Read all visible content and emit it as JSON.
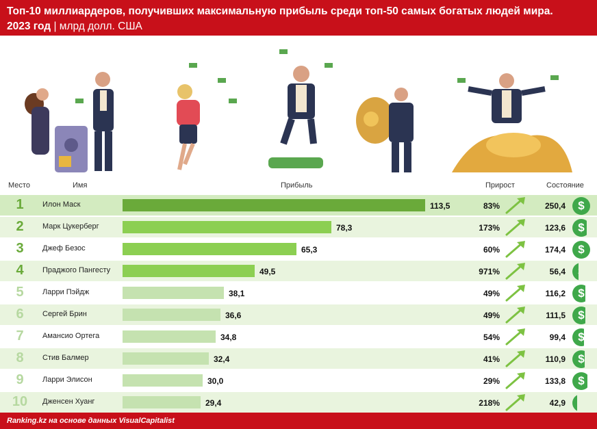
{
  "header": {
    "title_line1": "Топ-10 миллиардеров, получивших максимальную прибыль среди топ-50 самых богатых людей мира.",
    "title_year": "2023 год",
    "title_unit": " | млрд долл. США"
  },
  "columns": {
    "rank": "Место",
    "name": "Имя",
    "profit": "Прибыль",
    "growth": "Прирост",
    "worth": "Состояние"
  },
  "footer": {
    "source": "Ranking.kz на основе данных VisualCapitalist"
  },
  "coin_symbol": "$",
  "colors": {
    "header_red": "#c8101a",
    "bar_dark": "#6aaa3a",
    "bar_mid": "#8ccf52",
    "bar_light": "#c5e2b0",
    "arrow_green": "#7dc242",
    "coin_green": "#3fa84a",
    "rank_dark": "#6aaa3a",
    "rank_light": "#b6d8a0"
  },
  "chart_data": {
    "type": "bar",
    "orientation": "horizontal",
    "categories": [
      "Илон Маск",
      "Марк Цукерберг",
      "Джеф Безос",
      "Праджого Пангесту",
      "Ларри Пэйдж",
      "Сергей Брин",
      "Амансио Ортега",
      "Стив Балмер",
      "Ларри Элисон",
      "Дженсен Хуанг"
    ],
    "ranks": [
      "1",
      "2",
      "3",
      "4",
      "5",
      "6",
      "7",
      "8",
      "9",
      "10"
    ],
    "values": [
      113.5,
      78.3,
      65.3,
      49.5,
      38.1,
      36.6,
      34.8,
      32.4,
      30.0,
      29.4
    ],
    "value_labels": [
      "113,5",
      "78,3",
      "65,3",
      "49,5",
      "38,1",
      "36,6",
      "34,8",
      "32,4",
      "30,0",
      "29,4"
    ],
    "growth_labels": [
      "83%",
      "173%",
      "60%",
      "971%",
      "49%",
      "49%",
      "54%",
      "41%",
      "29%",
      "218%"
    ],
    "worth_labels": [
      "250,4",
      "123,6",
      "174,4",
      "56,4",
      "116,2",
      "111,5",
      "99,4",
      "110,9",
      "133,8",
      "42,9"
    ],
    "worth_values": [
      250.4,
      123.6,
      174.4,
      56.4,
      116.2,
      111.5,
      99.4,
      110.9,
      133.8,
      42.9
    ],
    "xlim": [
      0,
      113.5
    ]
  }
}
